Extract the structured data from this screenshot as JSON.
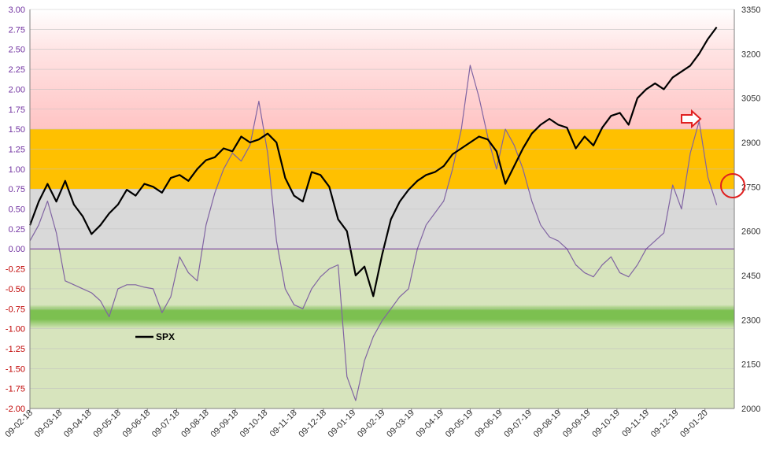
{
  "chart_data": {
    "type": "line",
    "x_tick_labels": [
      "09-02-18",
      "09-03-18",
      "09-04-18",
      "09-05-18",
      "09-06-18",
      "09-07-18",
      "09-08-18",
      "09-09-18",
      "09-10-18",
      "09-11-18",
      "09-12-18",
      "09-01-19",
      "09-02-19",
      "09-03-19",
      "09-04-19",
      "09-05-19",
      "09-06-19",
      "09-07-19",
      "09-08-19",
      "09-09-19",
      "09-10-19",
      "09-11-19",
      "09-12-19",
      "09-01-20"
    ],
    "left_axis": {
      "ylim": [
        -2.0,
        3.0
      ],
      "ticks": [
        "3.00",
        "2.75",
        "2.50",
        "2.25",
        "2.00",
        "1.75",
        "1.50",
        "1.25",
        "1.00",
        "0.75",
        "0.50",
        "0.25",
        "0.00",
        "-0.25",
        "-0.50",
        "-0.75",
        "-1.00",
        "-1.25",
        "-1.50",
        "-1.75",
        "-2.00"
      ],
      "positive_tick_color": "#7030a0",
      "negative_tick_color": "#c00000"
    },
    "right_axis": {
      "ylim": [
        2000,
        3350
      ],
      "ticks": [
        "3350",
        "3200",
        "3050",
        "2900",
        "2750",
        "2600",
        "2450",
        "2300",
        "2150",
        "2000"
      ]
    },
    "bands": [
      {
        "from": 1.5,
        "to": 3.0,
        "color": "#ffc9c9",
        "style": "gradient"
      },
      {
        "from": 0.75,
        "to": 1.5,
        "color": "#ffc000"
      },
      {
        "from": 0.0,
        "to": 0.75,
        "color": "#d9d9d9"
      },
      {
        "from": -2.0,
        "to": 0.0,
        "color": "#d7e4bd"
      },
      {
        "from": -1.0,
        "to": -0.7,
        "color": "#7cc050",
        "style": "gradient"
      }
    ],
    "grid": true,
    "series": [
      {
        "name": "SPX",
        "axis": "right",
        "color": "#000000",
        "x": [
          0,
          0.3,
          0.6,
          0.9,
          1.2,
          1.5,
          1.8,
          2.1,
          2.4,
          2.7,
          3.0,
          3.3,
          3.6,
          3.9,
          4.2,
          4.5,
          4.8,
          5.1,
          5.4,
          5.7,
          6.0,
          6.3,
          6.6,
          6.9,
          7.2,
          7.5,
          7.8,
          8.1,
          8.4,
          8.7,
          9.0,
          9.3,
          9.6,
          9.9,
          10.2,
          10.5,
          10.8,
          11.1,
          11.4,
          11.7,
          12.0,
          12.3,
          12.6,
          12.9,
          13.2,
          13.5,
          13.8,
          14.1,
          14.4,
          14.7,
          15.0,
          15.3,
          15.6,
          15.9,
          16.2,
          16.5,
          16.8,
          17.1,
          17.4,
          17.7,
          18.0,
          18.3,
          18.6,
          18.9,
          19.2,
          19.5,
          19.8,
          20.1,
          20.4,
          20.7,
          21.0,
          21.3,
          21.6,
          21.9,
          22.2,
          22.5,
          22.8,
          23.1,
          23.4
        ],
        "values": [
          2620,
          2700,
          2760,
          2700,
          2770,
          2690,
          2650,
          2590,
          2620,
          2660,
          2690,
          2740,
          2720,
          2760,
          2750,
          2730,
          2780,
          2790,
          2770,
          2810,
          2840,
          2850,
          2880,
          2870,
          2920,
          2900,
          2910,
          2930,
          2900,
          2780,
          2720,
          2700,
          2800,
          2790,
          2750,
          2640,
          2600,
          2450,
          2480,
          2380,
          2520,
          2640,
          2700,
          2740,
          2770,
          2790,
          2800,
          2820,
          2860,
          2880,
          2900,
          2920,
          2910,
          2870,
          2760,
          2820,
          2880,
          2930,
          2960,
          2980,
          2960,
          2950,
          2880,
          2920,
          2890,
          2950,
          2990,
          3000,
          2960,
          3050,
          3080,
          3100,
          3080,
          3120,
          3140,
          3160,
          3200,
          3250,
          3290
        ]
      },
      {
        "name": "",
        "axis": "left",
        "color": "#8064a2",
        "x": [
          0,
          0.3,
          0.6,
          0.9,
          1.2,
          1.5,
          1.8,
          2.1,
          2.4,
          2.7,
          3.0,
          3.3,
          3.6,
          3.9,
          4.2,
          4.5,
          4.8,
          5.1,
          5.4,
          5.7,
          6.0,
          6.3,
          6.6,
          6.9,
          7.2,
          7.5,
          7.8,
          8.1,
          8.4,
          8.7,
          9.0,
          9.3,
          9.6,
          9.9,
          10.2,
          10.5,
          10.8,
          11.1,
          11.4,
          11.7,
          12.0,
          12.3,
          12.6,
          12.9,
          13.2,
          13.5,
          13.8,
          14.1,
          14.4,
          14.7,
          15.0,
          15.3,
          15.6,
          15.9,
          16.2,
          16.5,
          16.8,
          17.1,
          17.4,
          17.7,
          18.0,
          18.3,
          18.6,
          18.9,
          19.2,
          19.5,
          19.8,
          20.1,
          20.4,
          20.7,
          21.0,
          21.3,
          21.6,
          21.9,
          22.2,
          22.5,
          22.8,
          23.1,
          23.4
        ],
        "values": [
          0.1,
          0.3,
          0.6,
          0.2,
          -0.4,
          -0.45,
          -0.5,
          -0.55,
          -0.65,
          -0.85,
          -0.5,
          -0.45,
          -0.45,
          -0.48,
          -0.5,
          -0.8,
          -0.6,
          -0.1,
          -0.3,
          -0.4,
          0.3,
          0.7,
          1.0,
          1.2,
          1.1,
          1.3,
          1.85,
          1.2,
          0.1,
          -0.5,
          -0.7,
          -0.75,
          -0.5,
          -0.35,
          -0.25,
          -0.2,
          -1.6,
          -1.9,
          -1.4,
          -1.1,
          -0.9,
          -0.75,
          -0.6,
          -0.5,
          0.0,
          0.3,
          0.45,
          0.6,
          1.0,
          1.5,
          2.3,
          1.9,
          1.4,
          1.0,
          1.5,
          1.3,
          1.0,
          0.6,
          0.3,
          0.15,
          0.1,
          0.0,
          -0.2,
          -0.3,
          -0.35,
          -0.2,
          -0.1,
          -0.3,
          -0.35,
          -0.2,
          0.0,
          0.1,
          0.2,
          0.8,
          0.5,
          1.2,
          1.6,
          0.9,
          0.55
        ]
      }
    ],
    "legend": {
      "label": "SPX",
      "placement": "left"
    },
    "annotations": [
      {
        "type": "arrow",
        "direction": "right",
        "color": "#e02020"
      },
      {
        "type": "circle",
        "color": "#e02020"
      }
    ]
  }
}
